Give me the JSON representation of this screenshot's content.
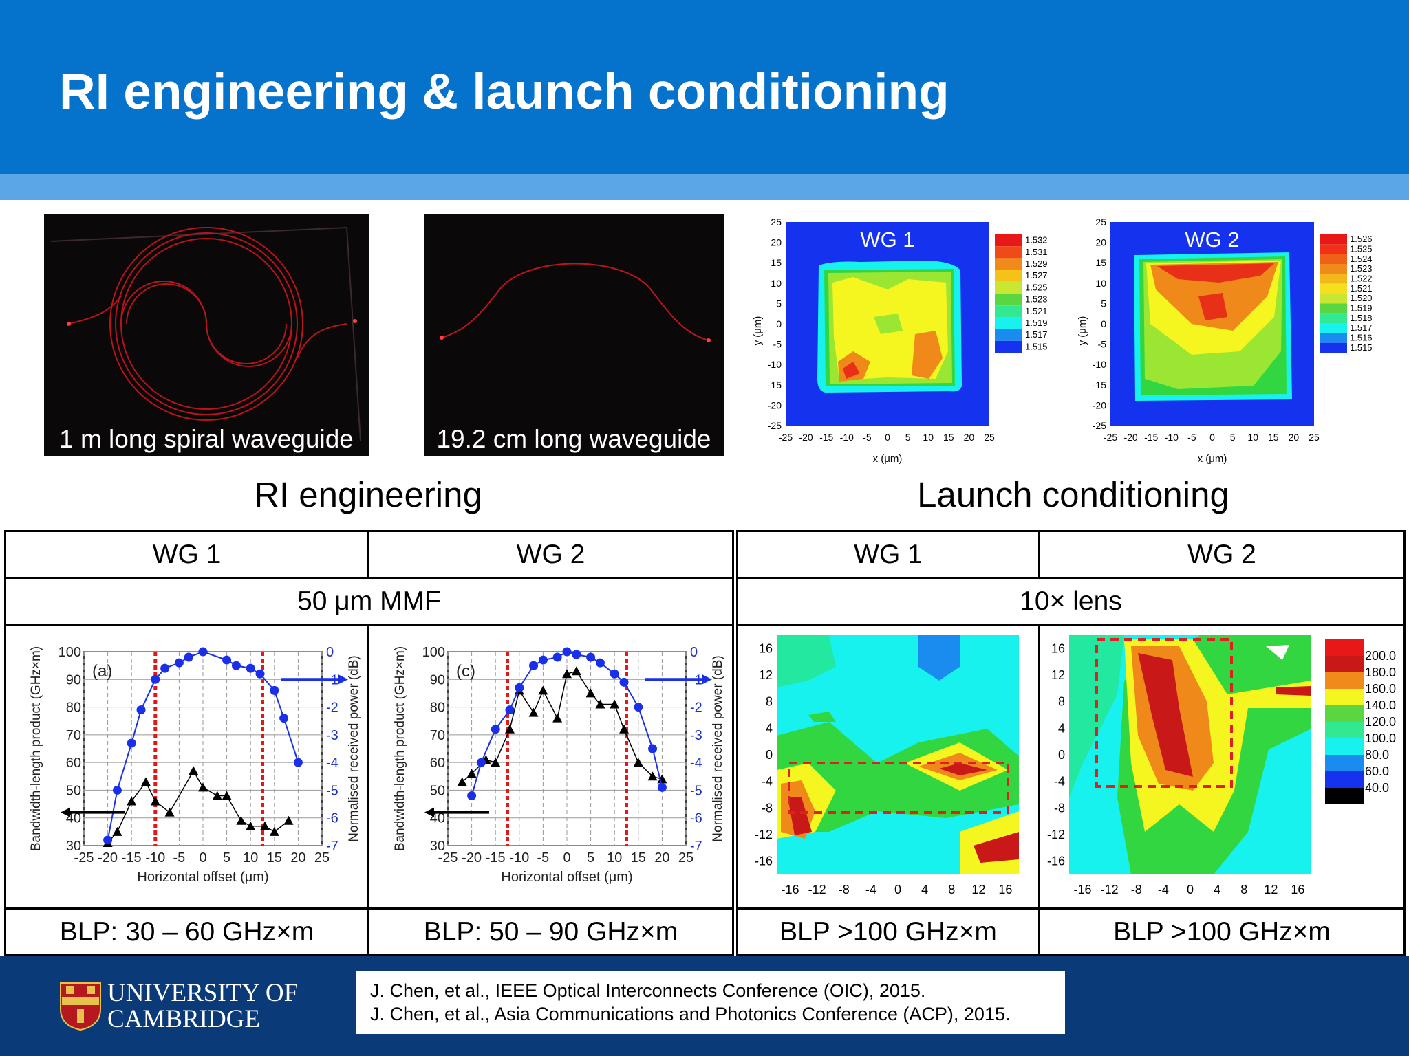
{
  "slide": {
    "title": "RI engineering & launch conditioning"
  },
  "photos": [
    {
      "caption": "1 m long spiral waveguide"
    },
    {
      "caption": "19.2 cm long waveguide"
    }
  ],
  "sections": {
    "left": "RI engineering",
    "right": "Launch conditioning"
  },
  "tables": {
    "left": {
      "col1": "WG 1",
      "col2": "WG 2",
      "source": "50 μm MMF",
      "blp1": "BLP: 30 – 60 GHz×m",
      "blp2": "BLP: 50 – 90 GHz×m"
    },
    "right": {
      "col1": "WG 1",
      "col2": "WG 2",
      "source": "10× lens",
      "blp1": "BLP >100 GHz×m",
      "blp2": "BLP >100 GHz×m"
    }
  },
  "footer": {
    "university_line1": "UNIVERSITY OF",
    "university_line2": "CAMBRIDGE",
    "references": [
      "J. Chen, et al., IEEE Optical Interconnects Conference (OIC), 2015.",
      "J. Chen, et al., Asia Communications and Photonics Conference (ACP), 2015."
    ]
  },
  "chart_data": [
    {
      "type": "heatmap",
      "title": "WG 1",
      "xlabel": "x (μm)",
      "ylabel": "y (μm)",
      "xlim": [
        -25,
        25
      ],
      "ylim": [
        -25,
        25
      ],
      "xticks": [
        "-25",
        "-20",
        "-15",
        "-10",
        "-5",
        "0",
        "5",
        "10",
        "15",
        "20",
        "25"
      ],
      "yticks": [
        "25",
        "20",
        "15",
        "10",
        "5",
        "0",
        "-5",
        "-10",
        "-15",
        "-20",
        "-25"
      ],
      "legend": [
        "1.532",
        "1.531",
        "1.529",
        "1.527",
        "1.525",
        "1.523",
        "1.521",
        "1.519",
        "1.517",
        "1.515"
      ]
    },
    {
      "type": "heatmap",
      "title": "WG 2",
      "xlabel": "x (μm)",
      "ylabel": "y (μm)",
      "xlim": [
        -25,
        25
      ],
      "ylim": [
        -25,
        25
      ],
      "xticks": [
        "-25",
        "-20",
        "-15",
        "-10",
        "-5",
        "0",
        "5",
        "10",
        "15",
        "20",
        "25"
      ],
      "yticks": [
        "25",
        "20",
        "15",
        "10",
        "5",
        "0",
        "-5",
        "-10",
        "-15",
        "-20",
        "-25"
      ],
      "legend": [
        "1.526",
        "1.525",
        "1.524",
        "1.523",
        "1.522",
        "1.521",
        "1.520",
        "1.519",
        "1.518",
        "1.517",
        "1.516",
        "1.515"
      ]
    },
    {
      "type": "line",
      "panel": "(a)",
      "xlabel": "Horizontal offset (μm)",
      "ylabel": "Bandwidth-length product (GHz×m)",
      "y2label": "Normalised received power (dB)",
      "xlim": [
        -25,
        25
      ],
      "ylim": [
        30,
        100
      ],
      "y2lim": [
        -7,
        0
      ],
      "xticks": [
        "-25",
        "-20",
        "-15",
        "-10",
        "-5",
        "0",
        "5",
        "10",
        "15",
        "20",
        "25"
      ],
      "yticks": [
        "100",
        "90",
        "80",
        "70",
        "60",
        "50",
        "40",
        "30"
      ],
      "y2ticks": [
        "0",
        "-1",
        "-2",
        "-3",
        "-4",
        "-5",
        "-6",
        "-7"
      ],
      "series": [
        {
          "name": "BLP",
          "x": [
            -20,
            -18,
            -15,
            -12,
            -10,
            -7,
            -2,
            0,
            3,
            5,
            8,
            10,
            13,
            15,
            18
          ],
          "values": [
            31,
            35,
            46,
            53,
            46,
            42,
            57,
            51,
            48,
            48,
            39,
            37,
            37,
            35,
            39
          ]
        },
        {
          "name": "Power (dB)",
          "x": [
            -20,
            -18,
            -15,
            -13,
            -10,
            -8,
            -5,
            -3,
            0,
            5,
            7,
            10,
            12,
            15,
            17,
            20
          ],
          "values": [
            -6.8,
            -5,
            -3.3,
            -2.1,
            -1,
            -0.6,
            -0.4,
            -0.2,
            0,
            -0.3,
            -0.5,
            -0.6,
            -0.8,
            -1.4,
            -2.4,
            -4
          ]
        }
      ],
      "markers_x": [
        -10,
        12.5
      ]
    },
    {
      "type": "line",
      "panel": "(c)",
      "xlabel": "Horizontal offset (μm)",
      "ylabel": "Bandwidth-length product (GHz×m)",
      "y2label": "Normalised received power (dB)",
      "xlim": [
        -25,
        25
      ],
      "ylim": [
        30,
        100
      ],
      "y2lim": [
        -7,
        0
      ],
      "xticks": [
        "-25",
        "-20",
        "-15",
        "-10",
        "-5",
        "0",
        "5",
        "10",
        "15",
        "20",
        "25"
      ],
      "yticks": [
        "100",
        "90",
        "80",
        "70",
        "60",
        "50",
        "40",
        "30"
      ],
      "y2ticks": [
        "0",
        "-1",
        "-2",
        "-3",
        "-4",
        "-5",
        "-6",
        "-7"
      ],
      "series": [
        {
          "name": "BLP",
          "x": [
            -22,
            -20,
            -17,
            -15,
            -12,
            -10,
            -7,
            -5,
            -2,
            0,
            2,
            5,
            7,
            10,
            12,
            15,
            18,
            20
          ],
          "values": [
            53,
            56,
            61,
            60,
            72,
            86,
            78,
            86,
            76,
            92,
            93,
            85,
            81,
            81,
            72,
            60,
            55,
            54
          ]
        },
        {
          "name": "Power (dB)",
          "x": [
            -20,
            -18,
            -15,
            -12,
            -10,
            -7,
            -5,
            -2,
            0,
            2,
            5,
            7,
            10,
            12,
            15,
            18,
            20
          ],
          "values": [
            -5.2,
            -4,
            -2.8,
            -2.1,
            -1.3,
            -0.5,
            -0.3,
            -0.2,
            0,
            -0.1,
            -0.2,
            -0.4,
            -0.8,
            -1.1,
            -2,
            -3.5,
            -4.9
          ]
        }
      ],
      "markers_x": [
        -12.5,
        12.5
      ]
    },
    {
      "type": "heatmap",
      "title": "Launch WG 1",
      "xlim": [
        -18,
        18
      ],
      "ylim": [
        -18,
        18
      ],
      "xticks": [
        "-16",
        "-12",
        "-8",
        "-4",
        "0",
        "4",
        "8",
        "12",
        "16"
      ],
      "yticks": [
        "16",
        "12",
        "8",
        "4",
        "0",
        "-4",
        "-8",
        "-12",
        "-16"
      ]
    },
    {
      "type": "heatmap",
      "title": "Launch WG 2",
      "xlim": [
        -18,
        18
      ],
      "ylim": [
        -18,
        18
      ],
      "xticks": [
        "-16",
        "-12",
        "-8",
        "-4",
        "0",
        "4",
        "8",
        "12",
        "16"
      ],
      "yticks": [
        "16",
        "12",
        "8",
        "4",
        "0",
        "-4",
        "-8",
        "-12",
        "-16"
      ],
      "legend": [
        "200.0",
        "180.0",
        "160.0",
        "140.0",
        "120.0",
        "100.0",
        "80.0",
        "60.0",
        "40.0"
      ]
    }
  ]
}
